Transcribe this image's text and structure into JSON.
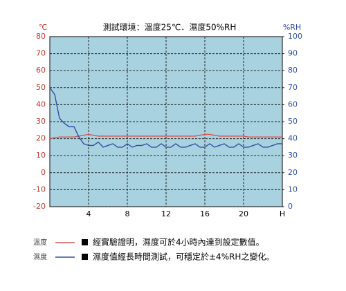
{
  "chart_data": {
    "type": "line",
    "title": "測試環境：溫度25℃．濕度50%RH",
    "y_label": "℃",
    "y2_label": "%RH",
    "x": [
      0,
      0.5,
      1,
      1.5,
      2,
      2.5,
      3,
      3.5,
      4,
      4.5,
      5,
      5.5,
      6,
      6.5,
      7,
      7.5,
      8,
      8.5,
      9,
      9.5,
      10,
      10.5,
      11,
      11.5,
      12,
      12.5,
      13,
      13.5,
      14,
      14.5,
      15,
      15.5,
      16,
      16.5,
      17,
      17.5,
      18,
      18.5,
      19,
      19.5,
      20,
      20.5,
      21,
      21.5,
      22,
      22.5,
      23,
      23.5,
      24
    ],
    "series": [
      {
        "name": "溫度",
        "color": "#d9534f",
        "axis": "y",
        "values": [
          20,
          20.5,
          21,
          21,
          21,
          21,
          21.5,
          22,
          22.5,
          22,
          21.5,
          21.5,
          21.5,
          21.5,
          21.5,
          21.5,
          21.5,
          21.5,
          21.5,
          21.5,
          21.5,
          21.5,
          21.5,
          21.5,
          21.5,
          21.5,
          21.5,
          21.5,
          21.5,
          21.5,
          21.5,
          22,
          22.5,
          22.5,
          22,
          21.5,
          21.5,
          21.5,
          21.5,
          21.5,
          21.5,
          21,
          21,
          21,
          21,
          21,
          21,
          21,
          21
        ]
      },
      {
        "name": "濕度",
        "color": "#2f4fa0",
        "axis": "y2",
        "values": [
          70,
          66,
          52,
          49,
          47,
          47,
          41,
          37,
          36,
          36,
          38,
          35,
          36,
          37,
          35,
          35,
          37,
          35,
          36,
          36,
          37,
          35,
          35,
          37,
          35,
          35,
          37,
          35,
          35,
          36,
          37,
          35,
          35,
          37,
          35,
          36,
          37,
          35,
          35,
          37,
          35,
          35,
          36,
          37,
          35,
          35,
          36,
          37,
          37
        ]
      }
    ],
    "xlim": [
      0,
      24
    ],
    "xticks": [
      4,
      8,
      12,
      16,
      20,
      {
        "value": 24,
        "label": "H"
      }
    ],
    "ylim": [
      -20,
      80
    ],
    "yticks": [
      -20,
      -10,
      0,
      10,
      20,
      30,
      40,
      50,
      60,
      70,
      80
    ],
    "y2lim": [
      0,
      100
    ],
    "y2ticks": [
      0,
      10,
      20,
      30,
      40,
      50,
      60,
      70,
      80,
      90,
      100
    ],
    "grid": true,
    "plot_background": "#a9d2e0",
    "notes": [
      "經實驗證明，濕度可於4小時內達到設定數值。",
      "濕度值經長時間測試，可穩定於±4%RH之變化。"
    ]
  }
}
